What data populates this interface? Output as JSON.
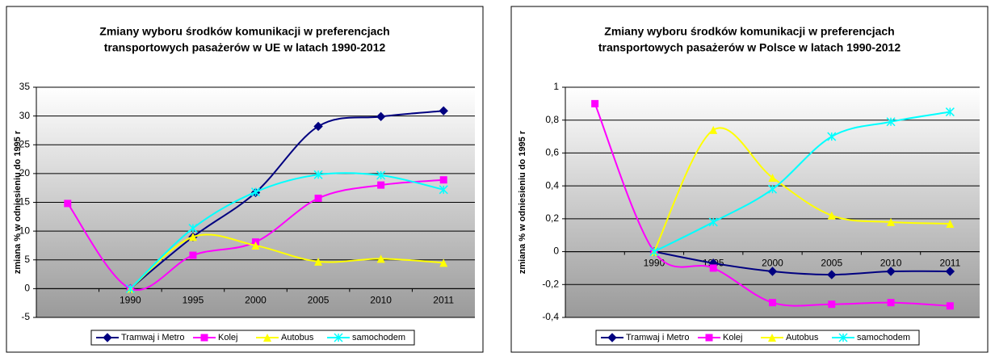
{
  "chart_data": [
    {
      "type": "line",
      "title": [
        "Zmiany wyboru środków komunikacji w preferencjach",
        "transportowych pasażerów w UE w latach 1990-2012"
      ],
      "y_label": "zmiana % w odniesieniu do 1995 r",
      "categories": [
        null,
        "1990",
        "1995",
        "2000",
        "2005",
        "2010",
        "2011"
      ],
      "ylim": [
        -5,
        35
      ],
      "yticks": [
        -5,
        0,
        5,
        10,
        15,
        20,
        25,
        30,
        35
      ],
      "grid": true,
      "legend": "bottom",
      "series": [
        {
          "name": "Tramwaj i Metro",
          "color": "#000080",
          "marker": "diamond",
          "values": [
            null,
            0,
            9,
            16.7,
            28.2,
            29.9,
            30.9
          ]
        },
        {
          "name": "Kolej",
          "color": "#ff00ff",
          "marker": "square",
          "values": [
            14.8,
            0,
            5.8,
            8.1,
            15.7,
            18.0,
            18.9
          ]
        },
        {
          "name": "Autobus",
          "color": "#ffff00",
          "marker": "triangle",
          "values": [
            null,
            0,
            9,
            7.5,
            4.7,
            5.2,
            4.5
          ]
        },
        {
          "name": "samochodem",
          "color": "#00ffff",
          "marker": "x",
          "values": [
            null,
            0,
            10.5,
            16.8,
            19.8,
            19.7,
            17.2
          ]
        }
      ]
    },
    {
      "type": "line",
      "title": [
        "Zmiany wyboru środków komunikacji w preferencjach",
        "transportowych pasażerów w Polsce w latach 1990-2012"
      ],
      "y_label": "zmiana % w odniesieniu do 1995 r",
      "categories": [
        null,
        "1990",
        "1995",
        "2000",
        "2005",
        "2010",
        "2011"
      ],
      "ylim": [
        -0.4,
        1
      ],
      "yticks": [
        {
          "value": -0.4,
          "label": "-0,4"
        },
        {
          "value": -0.2,
          "label": "-0,2"
        },
        0,
        {
          "value": 0.2,
          "label": "0,2"
        },
        {
          "value": 0.4,
          "label": "0,4"
        },
        {
          "value": 0.6,
          "label": "0,6"
        },
        {
          "value": 0.8,
          "label": "0,8"
        },
        1
      ],
      "grid": true,
      "legend": "bottom",
      "series": [
        {
          "name": "Tramwaj i Metro",
          "color": "#000080",
          "marker": "diamond",
          "values": [
            null,
            0,
            -0.07,
            -0.12,
            -0.14,
            -0.12,
            -0.12
          ]
        },
        {
          "name": "Kolej",
          "color": "#ff00ff",
          "marker": "square",
          "values": [
            0.9,
            0,
            -0.1,
            -0.31,
            -0.32,
            -0.31,
            -0.33
          ]
        },
        {
          "name": "Autobus",
          "color": "#ffff00",
          "marker": "triangle",
          "values": [
            null,
            0,
            0.74,
            0.45,
            0.22,
            0.18,
            0.17
          ]
        },
        {
          "name": "samochodem",
          "color": "#00ffff",
          "marker": "x",
          "values": [
            null,
            0,
            0.18,
            0.38,
            0.7,
            0.79,
            0.85
          ]
        }
      ]
    }
  ]
}
